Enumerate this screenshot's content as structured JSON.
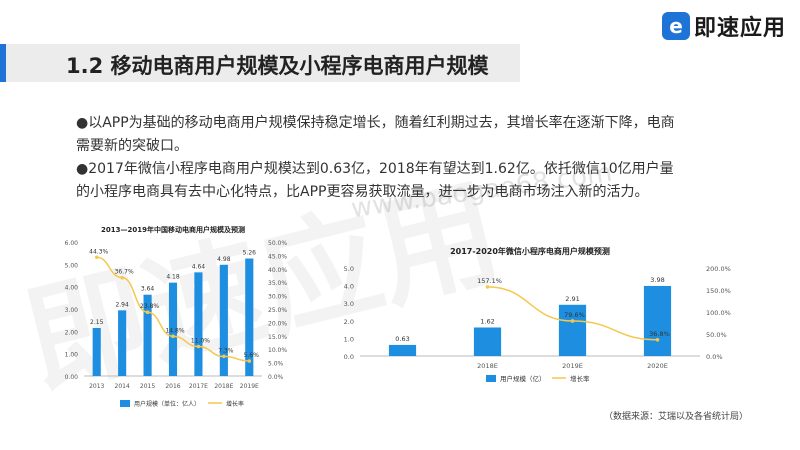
{
  "header": {
    "title": "1.2 移动电商用户规模及小程序电商用户规模",
    "logo_mark": "e",
    "logo_text": "即速应用"
  },
  "bullets": [
    "●以APP为基础的移动电商用户规模保持稳定增长，随着红利期过去，其增长率在逐渐下降，电商需要新的突破口。",
    "●2017年微信小程序电商用户规模达到0.63亿，2018年有望达到1.62亿。依托微信10亿用户量的小程序电商具有去中心化特点，比APP更容易获取流量，进一步为电商市场注入新的活力。"
  ],
  "watermark": "即速应用",
  "watermark_url": "www.baogao68.com",
  "source_note": "（数据来源：艾瑞以及各省统计局）",
  "colors": {
    "bar": "#1e8fe0",
    "line": "#f5c74d",
    "accent": "#1e74d6"
  },
  "chart_data": [
    {
      "type": "bar",
      "title": "2013—2019年中国移动电商用户规模及预测",
      "categories": [
        "2013",
        "2014",
        "2015",
        "2016",
        "2017E",
        "2018E",
        "2019E"
      ],
      "series": [
        {
          "name": "用户规模（单位：亿人）",
          "values": [
            2.15,
            2.94,
            3.64,
            4.18,
            4.64,
            4.98,
            5.26
          ],
          "labels": [
            "2.15",
            "2.94",
            "3.64",
            "4.18",
            "4.64",
            "4.98",
            "5.26"
          ]
        },
        {
          "name": "增长率",
          "values": [
            44.3,
            36.7,
            23.8,
            14.8,
            11.0,
            7.3,
            5.6
          ],
          "labels": [
            "44.3%",
            "36.7%",
            "23.8%",
            "14.8%",
            "11.0%",
            "7.3%",
            "5.6%"
          ],
          "type": "line"
        }
      ],
      "y_ticks": [
        "6.00",
        "5.00",
        "4.00",
        "3.00",
        "2.00",
        "1.00",
        "0.00"
      ],
      "y2_ticks": [
        "50.0%",
        "45.0%",
        "40.0%",
        "35.0%",
        "30.0%",
        "25.0%",
        "20.0%",
        "15.0%",
        "10.0%",
        "5.0%",
        "0.0%"
      ],
      "ylim": [
        0,
        6
      ],
      "y2lim": [
        0,
        50
      ],
      "legend_position": "bottom",
      "grid": false
    },
    {
      "type": "bar",
      "title": "2017-2020年微信小程序电商用户规模预测",
      "categories": [
        "",
        "2018E",
        "2019E",
        "2020E"
      ],
      "series": [
        {
          "name": "用户规模（亿）",
          "values": [
            0.63,
            1.62,
            2.91,
            3.98
          ],
          "labels": [
            "0.63",
            "1.62",
            "2.91",
            "3.98"
          ]
        },
        {
          "name": "增长率",
          "values": [
            null,
            157.1,
            79.6,
            36.8
          ],
          "labels": [
            "",
            "157.1%",
            "79.6%",
            "36.8%"
          ],
          "type": "line"
        }
      ],
      "y_ticks": [
        "5.0",
        "4.0",
        "3.0",
        "2.0",
        "1.0",
        "0.0"
      ],
      "y2_ticks": [
        "200.0%",
        "150.0%",
        "100.0%",
        "50.0%",
        "0.0%"
      ],
      "ylim": [
        0,
        5
      ],
      "y2lim": [
        0,
        200
      ],
      "legend_position": "bottom",
      "grid": false
    }
  ]
}
